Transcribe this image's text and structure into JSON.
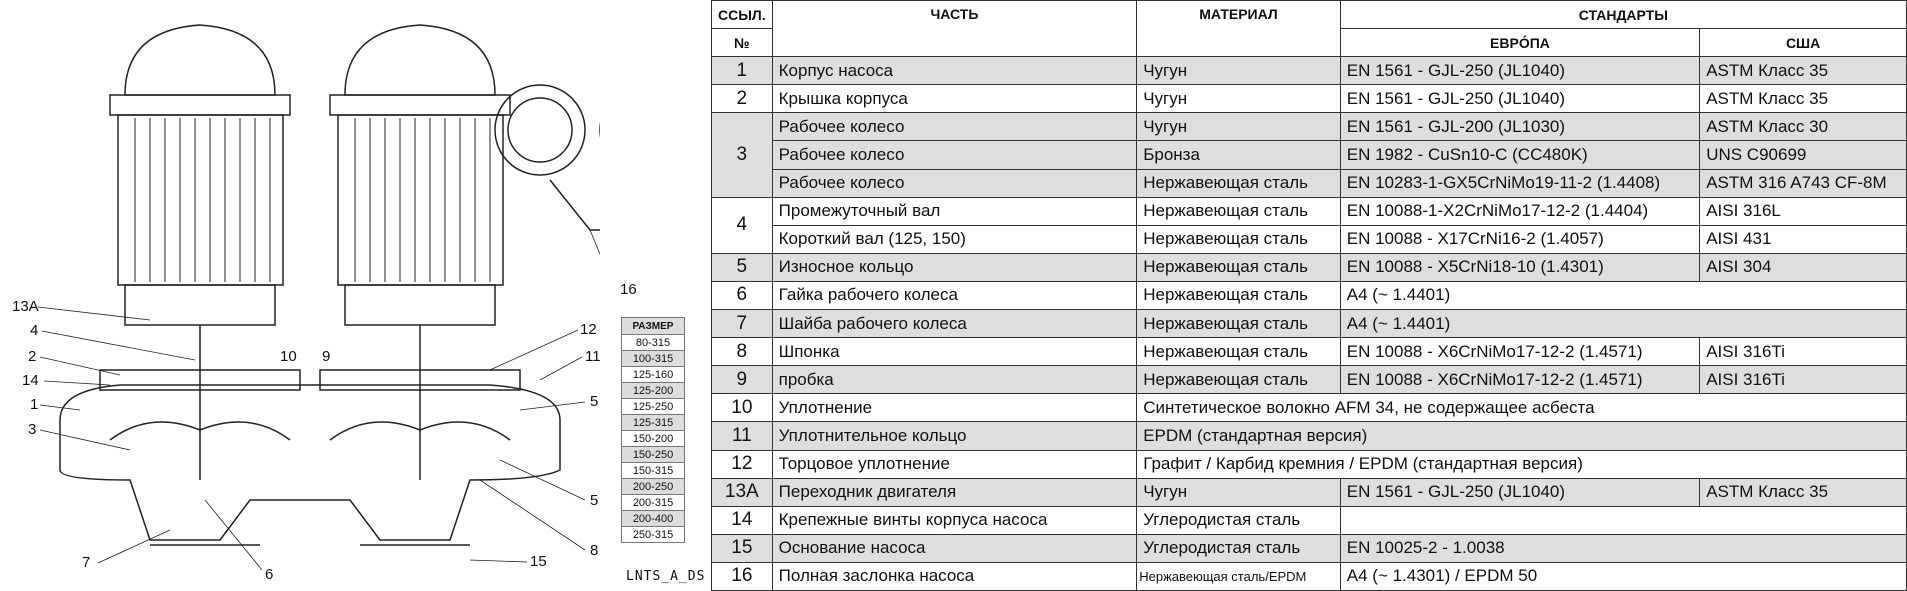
{
  "callouts": [
    "13A",
    "4",
    "2",
    "14",
    "1",
    "3",
    "7",
    "6",
    "10",
    "9",
    "12",
    "11",
    "5",
    "5",
    "8",
    "15",
    "16"
  ],
  "size_table": {
    "header": "РАЗМЕР",
    "sizes": [
      "80-315",
      "100-315",
      "125-160",
      "125-200",
      "125-250",
      "125-315",
      "150-200",
      "150-250",
      "150-315",
      "200-250",
      "200-315",
      "200-400",
      "250-315"
    ]
  },
  "drawing_code": "LNTS_A_DS",
  "table": {
    "headers": {
      "ref": "ССЫЛ.",
      "ref_no": "№",
      "part": "ЧАСТЬ",
      "material": "МАТЕРИАЛ",
      "standards": "СТАНДАРТЫ",
      "europe": "ЕВРÓПА",
      "usa": "США"
    },
    "rows": [
      {
        "ref": "1",
        "part": "Корпус насоса",
        "material": "Чугун",
        "europe": "EN 1561 - GJL-250 (JL1040)",
        "usa": "ASTM Класс 35"
      },
      {
        "ref": "2",
        "part": "Крышка корпуса",
        "material": "Чугун",
        "europe": "EN 1561 - GJL-250 (JL1040)",
        "usa": "ASTM Класс 35"
      },
      {
        "ref": "3",
        "part": "Рабочее колесо",
        "material": "Чугун",
        "europe": "EN 1561 - GJL-200 (JL1030)",
        "usa": "ASTM Класс 30"
      },
      {
        "part": "Рабочее колесо",
        "material": "Бронза",
        "europe": "EN 1982 - CuSn10-C (CC480K)",
        "usa": "UNS C90699"
      },
      {
        "part": "Рабочее колесо",
        "material": "Нержавеющая сталь",
        "europe": "EN 10283-1-GX5CrNiMo19-11-2 (1.4408)",
        "usa": "ASTM 316 A743 CF-8M"
      },
      {
        "ref": "4",
        "part": "Промежуточный вал",
        "material": "Нержавеющая сталь",
        "europe": "EN 10088-1-X2CrNiMo17-12-2 (1.4404)",
        "usa": "AISI 316L"
      },
      {
        "part": "Короткий вал (125, 150)",
        "material": "Нержавеющая сталь",
        "europe": "EN 10088 - X17CrNi16-2 (1.4057)",
        "usa": "AISI 431"
      },
      {
        "ref": "5",
        "part": "Износное кольцо",
        "material": "Нержавеющая сталь",
        "europe": "EN 10088 - X5CrNi18-10 (1.4301)",
        "usa": "AISI 304"
      },
      {
        "ref": "6",
        "part": "Гайка рабочего колеса",
        "material": "Нержавеющая сталь",
        "europe": "A4 (~ 1.4401)"
      },
      {
        "ref": "7",
        "part": "Шайба рабочего колеса",
        "material": "Нержавеющая сталь",
        "europe": "A4 (~ 1.4401)"
      },
      {
        "ref": "8",
        "part": "Шпонка",
        "material": "Нержавеющая сталь",
        "europe": "EN 10088 - X6CrNiMo17-12-2 (1.4571)",
        "usa": "AISI 316Ti"
      },
      {
        "ref": "9",
        "part": "пробка",
        "material": "Нержавеющая сталь",
        "europe": "EN 10088 - X6CrNiMo17-12-2 (1.4571)",
        "usa": "AISI 316Ti"
      },
      {
        "ref": "10",
        "part": "Уплотнение",
        "material": "Синтетическое волокно AFM 34, не содержащее асбеста"
      },
      {
        "ref": "11",
        "part": "Уплотнительное кольцо",
        "material": "EPDM (стандартная версия)"
      },
      {
        "ref": "12",
        "part": "Торцовое уплотнение",
        "material": "Графит / Карбид кремния / EPDM (стандартная версия)"
      },
      {
        "ref": "13A",
        "part": "Переходник двигателя",
        "material": "Чугун",
        "europe": "EN 1561 - GJL-250 (JL1040)",
        "usa": "ASTM Класс 35"
      },
      {
        "ref": "14",
        "part": "Крепежные винты корпуса насоса",
        "material": "Углеродистая сталь",
        "europe": ""
      },
      {
        "ref": "15",
        "part": "Основание насоса",
        "material": "Углеродистая сталь",
        "europe": "EN 10025-2 - 1.0038"
      },
      {
        "ref": "16",
        "part": "Полная заслонка насоса",
        "material": "Нержавеющая сталь/EPDM",
        "europe": "A4 (~ 1.4301) / EPDM 50"
      }
    ]
  }
}
